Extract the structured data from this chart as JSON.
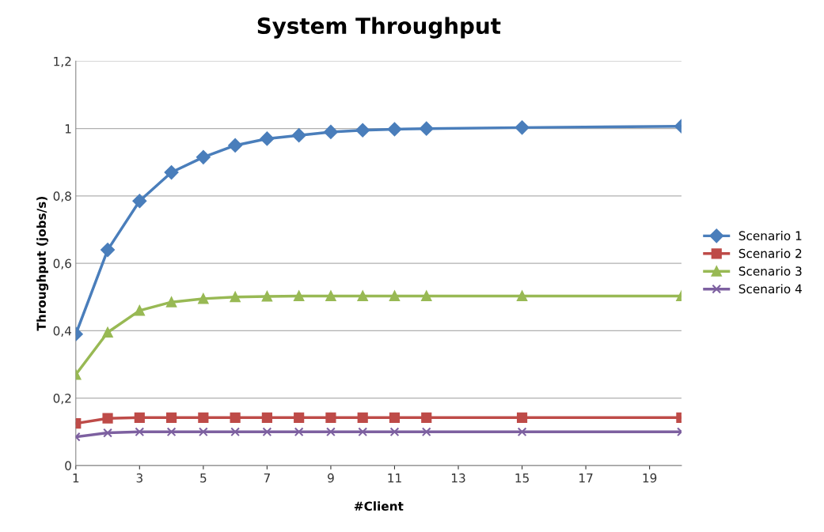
{
  "chart_data": {
    "type": "line",
    "title": "System Throughput",
    "xlabel": "#Client",
    "ylabel": "Throughput (jobs/s)",
    "x": [
      1,
      2,
      3,
      4,
      5,
      6,
      7,
      8,
      9,
      10,
      11,
      12,
      15,
      20
    ],
    "series": [
      {
        "name": "Scenario 1",
        "color": "#4a7ebb",
        "marker": "diamond",
        "values": [
          0.39,
          0.64,
          0.785,
          0.87,
          0.915,
          0.95,
          0.97,
          0.98,
          0.99,
          0.995,
          0.998,
          1.0,
          1.003,
          1.007
        ]
      },
      {
        "name": "Scenario 2",
        "color": "#be4b48",
        "marker": "square",
        "values": [
          0.125,
          0.14,
          0.142,
          0.142,
          0.142,
          0.142,
          0.142,
          0.142,
          0.142,
          0.142,
          0.142,
          0.142,
          0.142,
          0.142
        ]
      },
      {
        "name": "Scenario 3",
        "color": "#98b954",
        "marker": "triangle",
        "values": [
          0.27,
          0.395,
          0.46,
          0.485,
          0.495,
          0.5,
          0.502,
          0.503,
          0.503,
          0.503,
          0.503,
          0.503,
          0.503,
          0.503
        ]
      },
      {
        "name": "Scenario 4",
        "color": "#7d60a0",
        "marker": "cross",
        "values": [
          0.085,
          0.097,
          0.1,
          0.1,
          0.1,
          0.1,
          0.1,
          0.1,
          0.1,
          0.1,
          0.1,
          0.1,
          0.1,
          0.1
        ]
      }
    ],
    "xlim": [
      1,
      20
    ],
    "xticks": [
      1,
      3,
      5,
      7,
      9,
      11,
      13,
      15,
      17,
      19
    ],
    "ylim": [
      0,
      1.2
    ],
    "yticks": [
      0,
      {
        "value": 0.2,
        "label": "0,2"
      },
      {
        "value": 0.4,
        "label": "0,4"
      },
      {
        "value": 0.6,
        "label": "0,6"
      },
      {
        "value": 0.8,
        "label": "0,8"
      },
      1,
      {
        "value": 1.2,
        "label": "1,2"
      }
    ],
    "grid": "y",
    "legend": "right",
    "line_style": "solid"
  }
}
